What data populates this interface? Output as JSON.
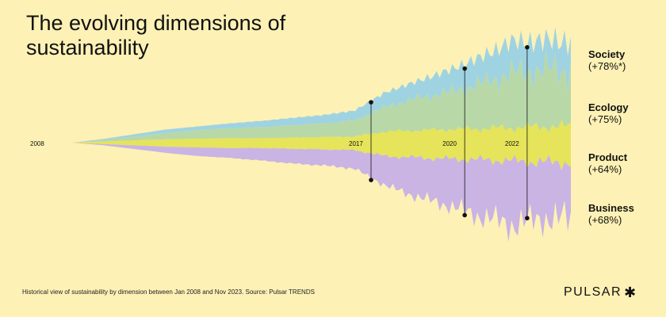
{
  "title": "The evolving dimensions of sustainability",
  "footer_note": "Historical view of sustainability by dimension between Jan 2008 and Nov 2023. Source: Pulsar TRENDS",
  "brand": "PULSAR",
  "brand_icon": "asterisk-star-icon",
  "colors": {
    "background": "#fdf1b5",
    "Society": "#9fd3e2",
    "Ecology": "#b8d8a8",
    "Product": "#e6e45a",
    "Business": "#c9b4e3",
    "marker": "#111111"
  },
  "chart_data": {
    "type": "area",
    "subtype": "streamgraph",
    "title": "The evolving dimensions of sustainability",
    "x_start": "2008",
    "x_end": "2023-11",
    "x_labels": [
      "2008",
      "2017",
      "2020",
      "2022"
    ],
    "x": [
      2008,
      2009,
      2010,
      2011,
      2012,
      2013,
      2014,
      2015,
      2016,
      2017,
      2018,
      2019,
      2020,
      2021,
      2022,
      2023
    ],
    "series": [
      {
        "name": "Society",
        "change": "(+78%*)",
        "values": [
          0,
          1,
          2,
          3,
          3,
          4,
          5,
          6,
          7,
          8,
          12,
          14,
          18,
          22,
          26,
          24
        ]
      },
      {
        "name": "Ecology",
        "change": "(+75%)",
        "values": [
          0,
          1,
          3,
          5,
          7,
          8,
          9,
          10,
          11,
          13,
          20,
          26,
          30,
          36,
          44,
          46
        ]
      },
      {
        "name": "Product",
        "change": "(+64%)",
        "values": [
          0,
          2,
          4,
          6,
          7,
          8,
          8,
          9,
          10,
          11,
          20,
          22,
          24,
          25,
          27,
          29
        ]
      },
      {
        "name": "Business",
        "change": "(+68%)",
        "values": [
          0,
          1,
          3,
          5,
          7,
          8,
          10,
          12,
          13,
          15,
          24,
          32,
          38,
          46,
          52,
          46
        ]
      }
    ],
    "markers": [
      {
        "label": "2017",
        "x": 2017
      },
      {
        "label": "2020",
        "x": 2020
      },
      {
        "label": "2022",
        "x": 2022
      }
    ],
    "grid": false,
    "legend": "right"
  }
}
